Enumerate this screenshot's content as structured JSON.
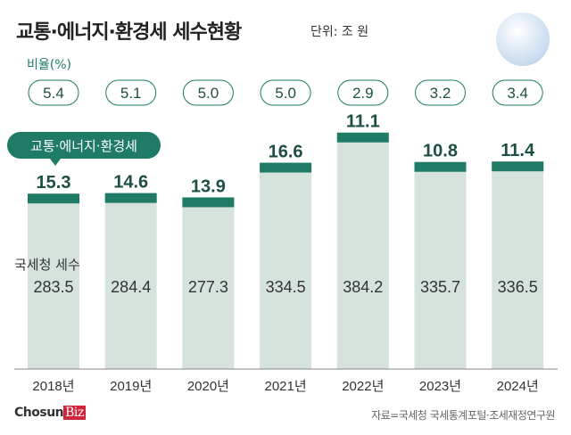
{
  "header": {
    "title": "교통·에너지·환경세 세수현황",
    "unit": "단위: 조 원"
  },
  "ratio_label": "비율(%)",
  "legend_tag": "교통·에너지·환경세",
  "total_label": "국세청 세수",
  "source": "자료=국세청 국세통계포털·조세재정연구원",
  "logo": {
    "main": "Chosun",
    "accent": "Biz"
  },
  "colors": {
    "bar": "#d5e3dc",
    "cap": "#1f7a66",
    "text": "#333333",
    "ratio": "#1f7a66"
  },
  "chart_data": {
    "type": "bar",
    "categories": [
      "2018년",
      "2019년",
      "2020년",
      "2021년",
      "2022년",
      "2023년",
      "2024년"
    ],
    "series": [
      {
        "name": "국세청 세수",
        "values": [
          283.5,
          284.4,
          277.3,
          334.5,
          384.2,
          335.7,
          336.5
        ]
      },
      {
        "name": "교통·에너지·환경세",
        "values": [
          15.3,
          14.6,
          13.9,
          16.6,
          11.1,
          10.8,
          11.4
        ]
      },
      {
        "name": "비율(%)",
        "values": [
          5.4,
          5.1,
          5.0,
          5.0,
          2.9,
          3.2,
          3.4
        ]
      }
    ],
    "value_labels": {
      "total": [
        "283.5",
        "284.4",
        "277.3",
        "334.5",
        "384.2",
        "335.7",
        "336.5"
      ],
      "tax": [
        "15.3",
        "14.6",
        "13.9",
        "16.6",
        "11.1",
        "10.8",
        "11.4"
      ],
      "ratio": [
        "5.4",
        "5.1",
        "5.0",
        "5.0",
        "2.9",
        "3.2",
        "3.4"
      ]
    }
  }
}
